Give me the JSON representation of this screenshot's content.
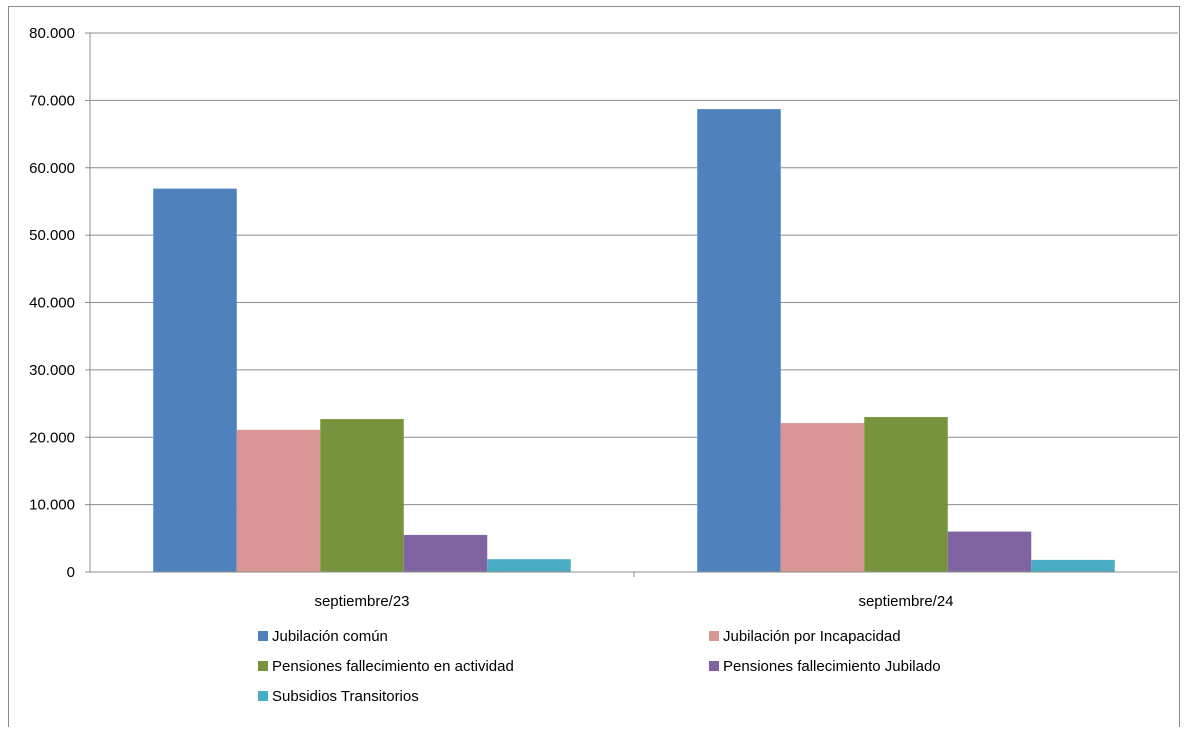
{
  "chart_data": {
    "type": "bar",
    "categories": [
      "septiembre/23",
      "septiembre/24"
    ],
    "series": [
      {
        "name": "Jubilación común",
        "color": "#4F81BD",
        "values": [
          56900,
          68700
        ]
      },
      {
        "name": "Jubilación por Incapacidad",
        "color": "#D99694",
        "values": [
          21100,
          22100
        ]
      },
      {
        "name": "Pensiones fallecimiento en actividad",
        "color": "#77933C",
        "values": [
          22700,
          23000
        ]
      },
      {
        "name": "Pensiones fallecimiento Jubilado",
        "color": "#8064A2",
        "values": [
          5500,
          6000
        ]
      },
      {
        "name": "Subsidios Transitorios",
        "color": "#4BACC6",
        "values": [
          1900,
          1800
        ]
      }
    ],
    "y_ticks": [
      "0",
      "10.000",
      "20.000",
      "30.000",
      "40.000",
      "50.000",
      "60.000",
      "70.000",
      "80.000"
    ],
    "ylim": [
      0,
      80000
    ],
    "grid": true,
    "legend_position": "bottom"
  }
}
